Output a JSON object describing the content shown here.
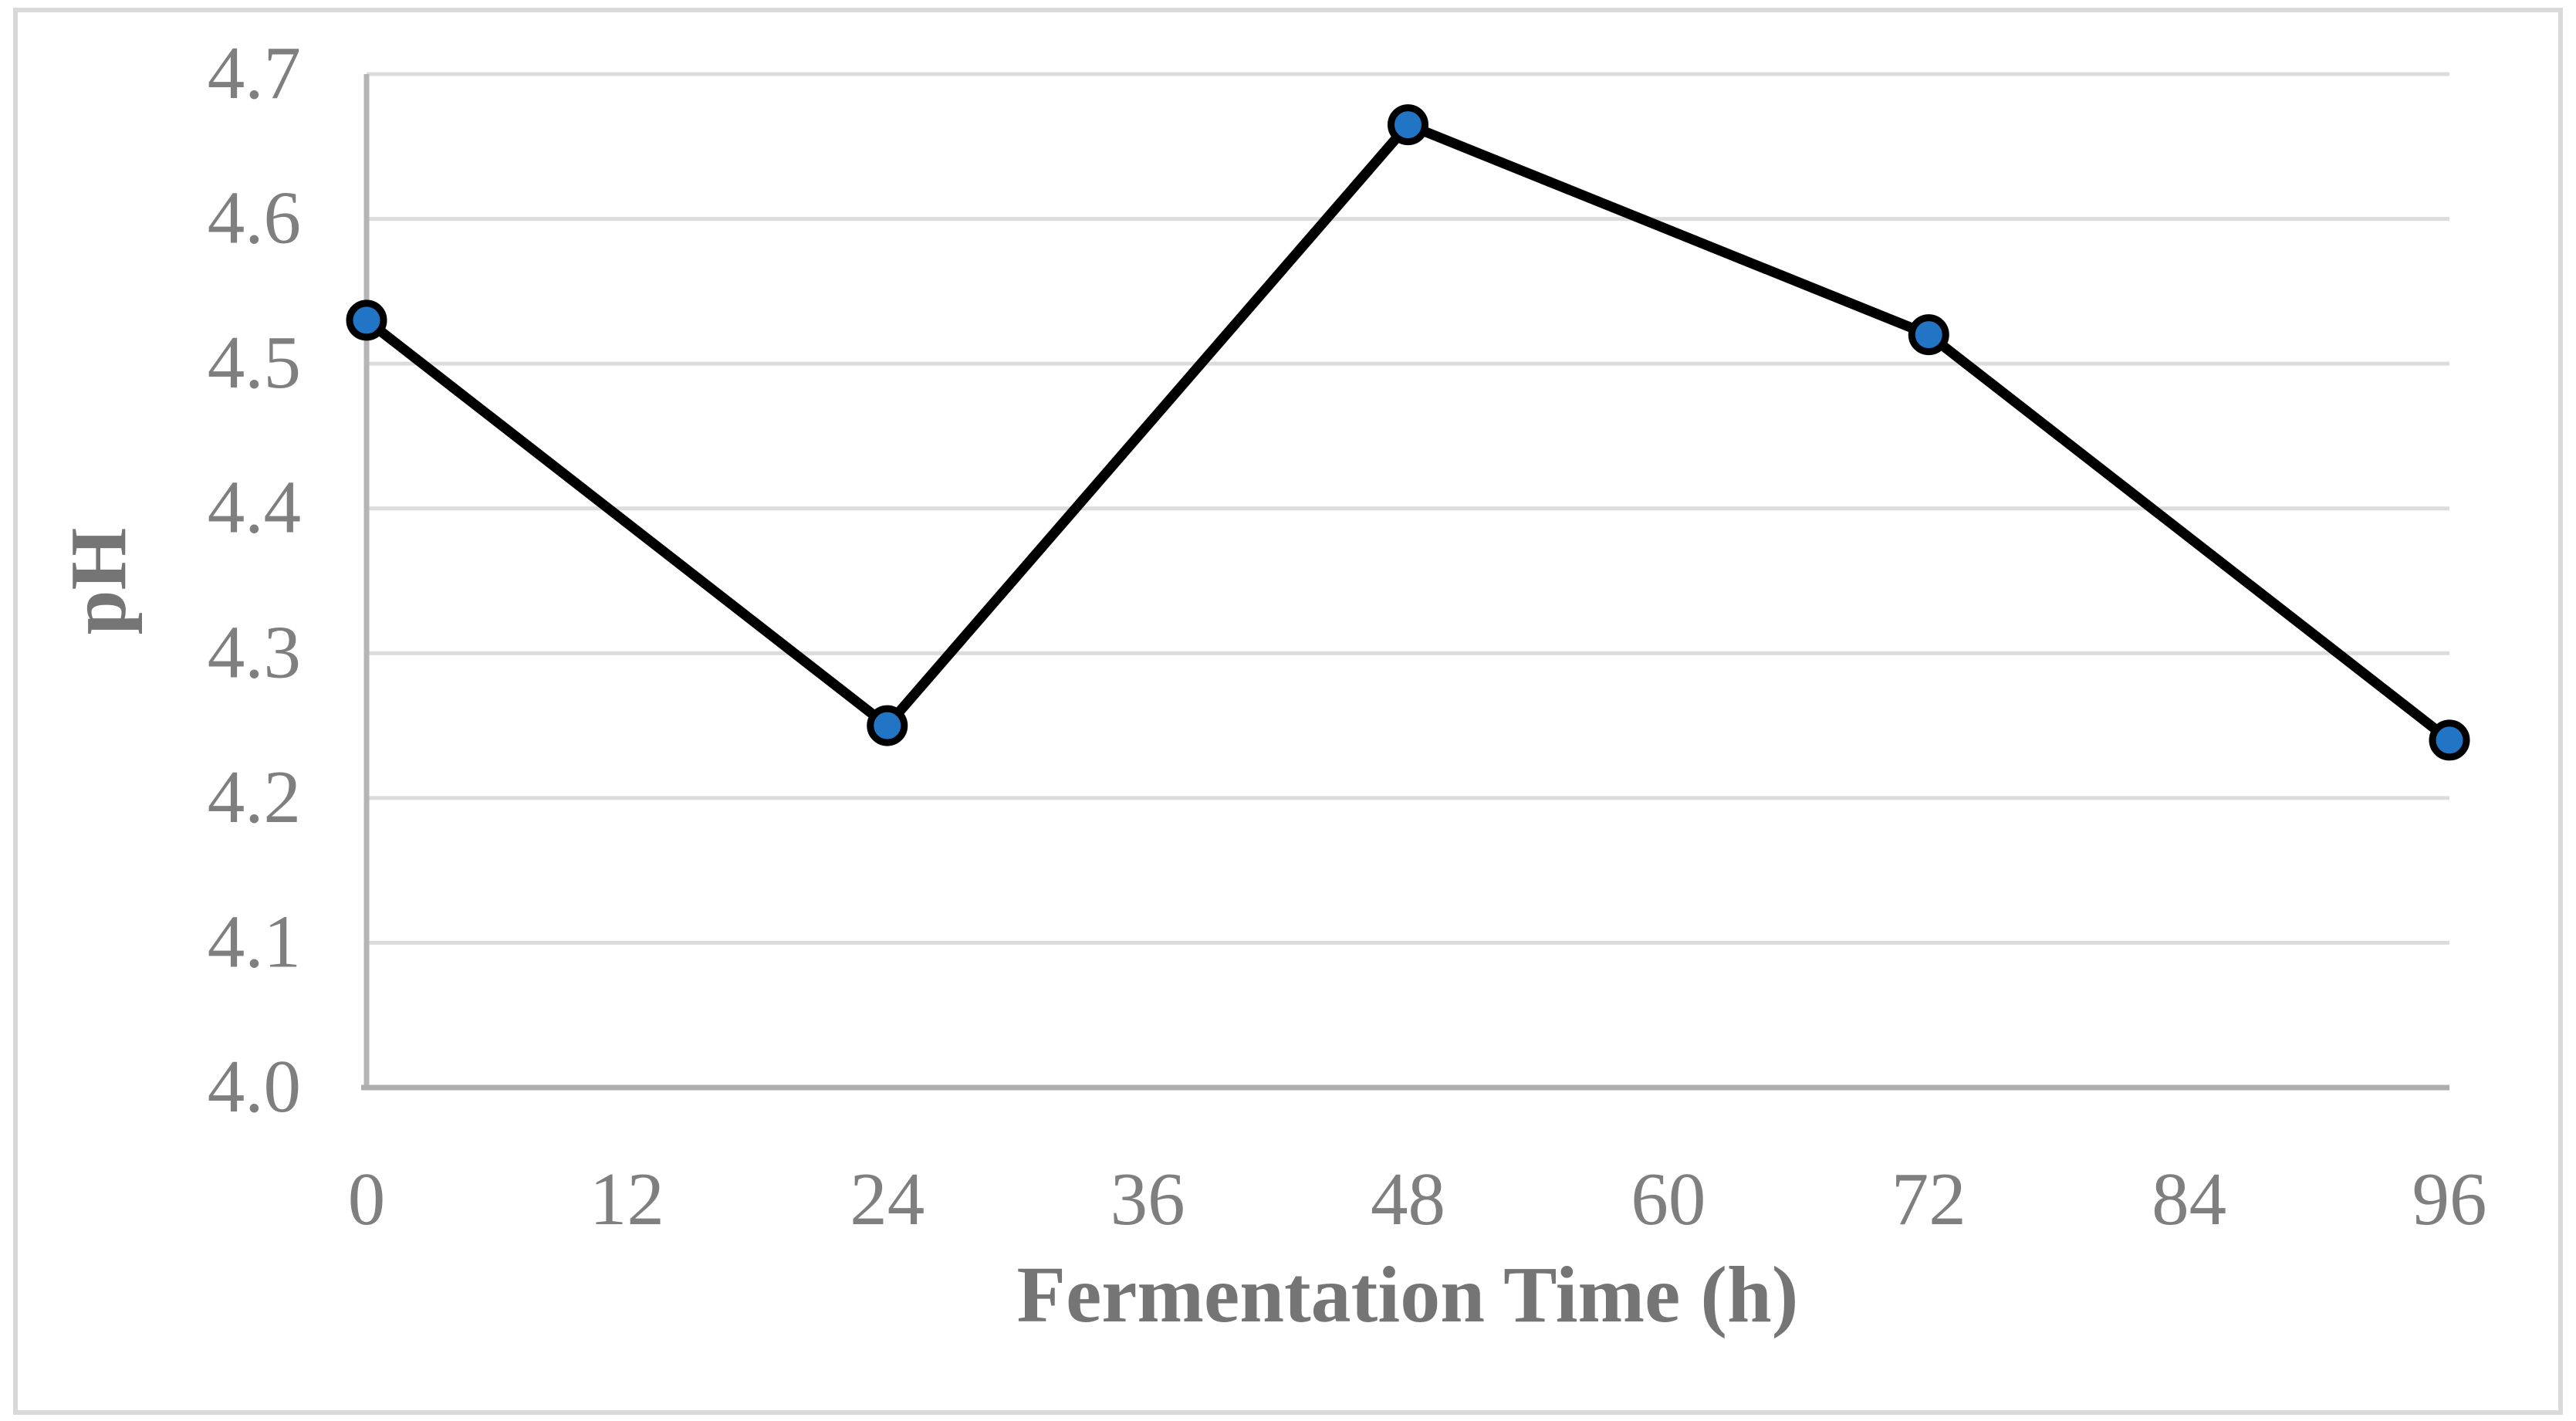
{
  "figure": {
    "background_color": "#FFFFFF",
    "border_color": "#D9D9D9"
  },
  "chart_data": {
    "type": "line",
    "title": "",
    "xlabel": "Fermentation Time (h)",
    "ylabel": "pH",
    "x": [
      0,
      24,
      48,
      72,
      96
    ],
    "series": [
      {
        "name": "pH",
        "values": [
          4.53,
          4.25,
          4.665,
          4.52,
          4.24
        ]
      }
    ],
    "x_ticks": [
      "0",
      "12",
      "24",
      "36",
      "48",
      "60",
      "72",
      "84",
      "96"
    ],
    "y_ticks": [
      "4.0",
      "4.1",
      "4.2",
      "4.3",
      "4.4",
      "4.5",
      "4.6",
      "4.7"
    ],
    "xlim": [
      0,
      96
    ],
    "ylim": [
      4.0,
      4.7
    ],
    "grid": "horizontal",
    "legend": "none",
    "line_color": "#000000",
    "marker_fill": "#2274C4",
    "marker_outline": "#000000",
    "grid_color": "#DCDCDC",
    "y_axis_color": "#B5B5B5",
    "x_axis_color": "#ADADAD",
    "tick_label_color": "#7F7F7F",
    "axis_title_color": "#757575"
  }
}
